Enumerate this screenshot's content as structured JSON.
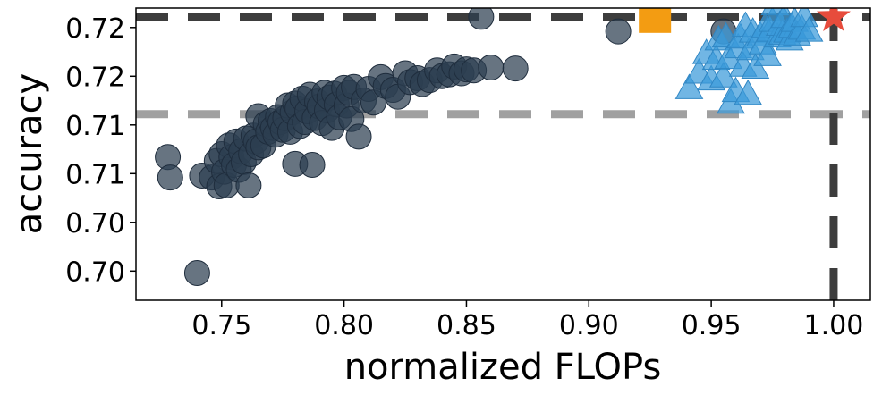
{
  "chart_data": {
    "type": "scatter",
    "title": "",
    "xlabel": "normalized FLOPs",
    "ylabel": "accuracy",
    "xlim": [
      0.715,
      1.015
    ],
    "ylim": [
      0.6945,
      0.7245
    ],
    "x_ticks": [
      0.75,
      0.8,
      0.85,
      0.9,
      0.95,
      1.0
    ],
    "x_tick_labels": [
      "0.75",
      "0.80",
      "0.85",
      "0.90",
      "0.95",
      "1.00"
    ],
    "y_ticks": [
      0.6975,
      0.7025,
      0.7075,
      0.7125,
      0.7175,
      0.7225
    ],
    "y_tick_labels": [
      "0.70",
      "0.70",
      "0.71",
      "0.71",
      "0.72",
      "0.72"
    ],
    "grid": false,
    "legend": "none",
    "colors": {
      "circles": "#2c3e50",
      "triangles": "#3a9ad9",
      "square": "#f39c12",
      "star": "#e74c3c",
      "dark_line": "#3d3d3d",
      "light_line": "#a0a0a0"
    },
    "reference_lines": [
      {
        "orientation": "horizontal",
        "value": 0.7236,
        "color": "#3d3d3d",
        "style": "dashed"
      },
      {
        "orientation": "horizontal",
        "value": 0.7136,
        "color": "#a0a0a0",
        "style": "dashed"
      },
      {
        "orientation": "vertical",
        "value": 1.0,
        "color": "#3d3d3d",
        "style": "dashed"
      }
    ],
    "series": [
      {
        "marker": "circle",
        "color": "#2c3e50",
        "x": [
          0.728,
          0.729,
          0.74,
          0.742,
          0.746,
          0.748,
          0.749,
          0.75,
          0.751,
          0.752,
          0.753,
          0.754,
          0.755,
          0.756,
          0.757,
          0.758,
          0.759,
          0.76,
          0.761,
          0.762,
          0.763,
          0.764,
          0.765,
          0.765,
          0.767,
          0.768,
          0.769,
          0.77,
          0.771,
          0.772,
          0.773,
          0.774,
          0.775,
          0.776,
          0.777,
          0.778,
          0.779,
          0.78,
          0.78,
          0.781,
          0.782,
          0.783,
          0.784,
          0.785,
          0.786,
          0.787,
          0.788,
          0.789,
          0.79,
          0.791,
          0.792,
          0.793,
          0.794,
          0.795,
          0.796,
          0.797,
          0.798,
          0.8,
          0.801,
          0.802,
          0.803,
          0.804,
          0.806,
          0.808,
          0.81,
          0.812,
          0.815,
          0.817,
          0.82,
          0.822,
          0.825,
          0.827,
          0.83,
          0.832,
          0.835,
          0.838,
          0.84,
          0.843,
          0.845,
          0.848,
          0.85,
          0.853,
          0.856,
          0.86,
          0.87,
          0.912,
          0.955
        ],
        "y": [
          0.7092,
          0.7071,
          0.6973,
          0.7073,
          0.7071,
          0.7088,
          0.7062,
          0.7095,
          0.7077,
          0.7063,
          0.7104,
          0.7092,
          0.7084,
          0.7108,
          0.7079,
          0.7098,
          0.7087,
          0.7111,
          0.7063,
          0.7095,
          0.7114,
          0.7108,
          0.7102,
          0.7134,
          0.7104,
          0.7126,
          0.7118,
          0.7129,
          0.7122,
          0.7115,
          0.7133,
          0.7128,
          0.712,
          0.7132,
          0.7145,
          0.7118,
          0.7138,
          0.7147,
          0.7085,
          0.7142,
          0.7124,
          0.7152,
          0.7128,
          0.7139,
          0.7156,
          0.7084,
          0.7132,
          0.7149,
          0.7144,
          0.7127,
          0.7158,
          0.714,
          0.7153,
          0.7122,
          0.7157,
          0.7146,
          0.7133,
          0.7163,
          0.7145,
          0.7158,
          0.7131,
          0.7164,
          0.7113,
          0.715,
          0.7162,
          0.7148,
          0.7174,
          0.7165,
          0.7161,
          0.7154,
          0.7178,
          0.7169,
          0.7173,
          0.7167,
          0.7171,
          0.7181,
          0.7175,
          0.7177,
          0.7185,
          0.7178,
          0.7182,
          0.7181,
          0.7236,
          0.7184,
          0.7183,
          0.7221,
          0.7221
        ]
      },
      {
        "marker": "triangle",
        "color": "#3a9ad9",
        "x": [
          0.941,
          0.945,
          0.948,
          0.95,
          0.952,
          0.953,
          0.955,
          0.956,
          0.957,
          0.958,
          0.96,
          0.961,
          0.962,
          0.963,
          0.964,
          0.965,
          0.966,
          0.967,
          0.968,
          0.97,
          0.971,
          0.972,
          0.973,
          0.974,
          0.975,
          0.976,
          0.977,
          0.978,
          0.979,
          0.98,
          0.981,
          0.982,
          0.983,
          0.984,
          0.985,
          0.987,
          0.988,
          0.99
        ],
        "y": [
          0.7163,
          0.7179,
          0.7199,
          0.7172,
          0.7193,
          0.7213,
          0.7175,
          0.7216,
          0.7194,
          0.7148,
          0.716,
          0.7205,
          0.7215,
          0.7186,
          0.7227,
          0.7157,
          0.7203,
          0.7221,
          0.7184,
          0.7217,
          0.7209,
          0.7226,
          0.7197,
          0.7222,
          0.7232,
          0.7249,
          0.7216,
          0.7228,
          0.7219,
          0.7236,
          0.7221,
          0.7213,
          0.7226,
          0.7232,
          0.7218,
          0.7224,
          0.7237,
          0.7222
        ]
      },
      {
        "marker": "square",
        "color": "#f39c12",
        "x": [
          0.927
        ],
        "y": [
          0.7236
        ]
      },
      {
        "marker": "star",
        "color": "#e74c3c",
        "x": [
          1.0
        ],
        "y": [
          0.7236
        ]
      }
    ]
  }
}
